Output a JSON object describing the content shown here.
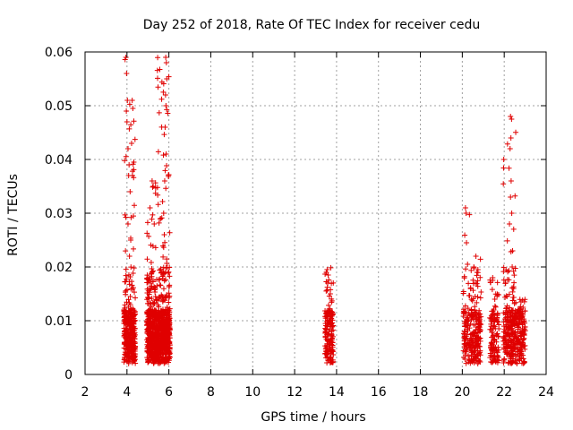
{
  "chart_data": {
    "type": "scatter",
    "title": "Day 252 of 2018, Rate Of TEC Index for receiver cedu",
    "xlabel": "GPS time / hours",
    "ylabel": "ROTI / TECUs",
    "xlim": [
      2,
      24
    ],
    "ylim": [
      0,
      0.06
    ],
    "xticks": [
      "2",
      "4",
      "6",
      "8",
      "10",
      "12",
      "14",
      "16",
      "18",
      "20",
      "22",
      "24"
    ],
    "yticks": [
      "0",
      "0.01",
      "0.02",
      "0.03",
      "0.04",
      "0.05",
      "0.06"
    ],
    "grid": true,
    "marker": "+",
    "color": "#e00000",
    "series": [
      {
        "name": "ROTI",
        "clusters": [
          {
            "x_range": [
              3.85,
              4.4
            ],
            "y_max": 0.059,
            "count": 380
          },
          {
            "x_range": [
              4.95,
              5.45
            ],
            "y_max": 0.036,
            "count": 420
          },
          {
            "x_range": [
              5.45,
              6.05
            ],
            "y_max": 0.059,
            "count": 560
          },
          {
            "x_range": [
              13.45,
              13.85
            ],
            "y_max": 0.02,
            "count": 160
          },
          {
            "x_range": [
              20.05,
              20.45
            ],
            "y_max": 0.031,
            "count": 110
          },
          {
            "x_range": [
              20.45,
              20.9
            ],
            "y_max": 0.022,
            "count": 150
          },
          {
            "x_range": [
              21.3,
              21.75
            ],
            "y_max": 0.018,
            "count": 110
          },
          {
            "x_range": [
              21.95,
              22.55
            ],
            "y_max": 0.048,
            "count": 240
          },
          {
            "x_range": [
              22.55,
              23.0
            ],
            "y_max": 0.014,
            "count": 150
          }
        ],
        "points": [
          [
            3.95,
            0.059
          ],
          [
            3.98,
            0.056
          ],
          [
            4.02,
            0.051
          ],
          [
            3.97,
            0.049
          ],
          [
            4.0,
            0.047
          ],
          [
            4.05,
            0.042
          ],
          [
            4.25,
            0.051
          ],
          [
            4.28,
            0.0495
          ],
          [
            4.22,
            0.043
          ],
          [
            4.1,
            0.039
          ],
          [
            4.08,
            0.037
          ],
          [
            4.15,
            0.034
          ],
          [
            4.05,
            0.028
          ],
          [
            4.18,
            0.025
          ],
          [
            4.12,
            0.022
          ],
          [
            5.85,
            0.059
          ],
          [
            5.88,
            0.058
          ],
          [
            5.9,
            0.055
          ],
          [
            5.84,
            0.052
          ],
          [
            5.86,
            0.05
          ],
          [
            5.82,
            0.046
          ],
          [
            5.87,
            0.041
          ],
          [
            5.8,
            0.036
          ],
          [
            5.75,
            0.03
          ],
          [
            5.78,
            0.026
          ],
          [
            5.2,
            0.036
          ],
          [
            5.25,
            0.035
          ],
          [
            5.1,
            0.031
          ],
          [
            5.3,
            0.028
          ],
          [
            5.6,
            0.029
          ],
          [
            13.55,
            0.0195
          ],
          [
            13.6,
            0.0185
          ],
          [
            13.58,
            0.017
          ],
          [
            13.7,
            0.015
          ],
          [
            20.15,
            0.031
          ],
          [
            20.18,
            0.03
          ],
          [
            20.2,
            0.0245
          ],
          [
            20.25,
            0.0205
          ],
          [
            20.65,
            0.022
          ],
          [
            20.55,
            0.02
          ],
          [
            20.7,
            0.019
          ],
          [
            20.62,
            0.017
          ],
          [
            21.45,
            0.018
          ],
          [
            21.55,
            0.014
          ],
          [
            21.5,
            0.012
          ],
          [
            22.3,
            0.048
          ],
          [
            22.35,
            0.0475
          ],
          [
            22.32,
            0.044
          ],
          [
            22.28,
            0.042
          ],
          [
            22.33,
            0.036
          ],
          [
            22.3,
            0.033
          ],
          [
            22.36,
            0.03
          ],
          [
            22.25,
            0.028
          ],
          [
            22.4,
            0.023
          ],
          [
            22.38,
            0.02
          ],
          [
            22.45,
            0.016
          ],
          [
            22.8,
            0.0135
          ],
          [
            22.9,
            0.0125
          ],
          [
            22.7,
            0.0115
          ]
        ]
      }
    ]
  }
}
